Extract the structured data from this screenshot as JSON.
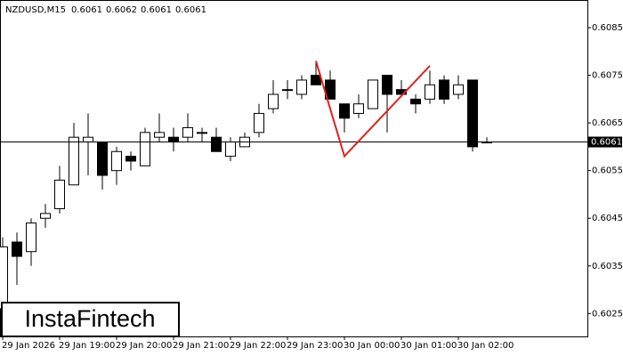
{
  "chart_data": {
    "type": "candlestick",
    "title": "NZDUSD,M15",
    "categories": [
      "29 Jan 2026",
      null,
      null,
      null,
      "29 Jan 19:00",
      null,
      null,
      null,
      "29 Jan 20:00",
      null,
      null,
      null,
      "29 Jan 21:00",
      null,
      null,
      null,
      "29 Jan 22:00",
      null,
      null,
      null,
      "29 Jan 23:00",
      null,
      null,
      null,
      "30 Jan 00:00",
      null,
      null,
      null,
      "30 Jan 01:00",
      null,
      null,
      null,
      "30 Jan 02:00",
      null,
      null
    ],
    "open": [
      0.6026,
      0.604,
      0.6038,
      0.6045,
      0.6047,
      0.6052,
      0.6061,
      0.6061,
      0.6055,
      0.6058,
      0.6056,
      0.6062,
      0.6062,
      0.6062,
      0.6063,
      0.6062,
      0.6058,
      0.606,
      0.6063,
      0.6068,
      0.6072,
      0.6071,
      0.6075,
      0.6074,
      0.6069,
      0.6067,
      0.6068,
      0.6075,
      0.6072,
      0.607,
      0.607,
      0.6074,
      0.6071,
      0.6074,
      0.6061
    ],
    "high": [
      0.6041,
      0.6042,
      0.6045,
      0.6048,
      0.6056,
      0.6065,
      0.6067,
      0.6061,
      0.606,
      0.6059,
      0.6064,
      0.6067,
      0.6064,
      0.6067,
      0.6064,
      0.6064,
      0.6062,
      0.6063,
      0.6069,
      0.6074,
      0.6074,
      0.6075,
      0.6078,
      0.6076,
      0.6069,
      0.6071,
      0.6074,
      0.6075,
      0.6074,
      0.6071,
      0.6076,
      0.6075,
      0.6075,
      0.6074,
      0.6062
    ],
    "low": [
      0.6022,
      0.6031,
      0.6035,
      0.6043,
      0.6046,
      0.6052,
      0.6054,
      0.6051,
      0.6052,
      0.6055,
      0.6056,
      0.6061,
      0.6059,
      0.6061,
      0.6061,
      0.6059,
      0.6057,
      0.606,
      0.6062,
      0.6067,
      0.607,
      0.607,
      0.6073,
      0.607,
      0.6063,
      0.6066,
      0.6068,
      0.6063,
      0.6071,
      0.6067,
      0.6069,
      0.6069,
      0.607,
      0.6059,
      0.6061
    ],
    "close": [
      0.6039,
      0.6037,
      0.6044,
      0.6046,
      0.6053,
      0.6062,
      0.6062,
      0.6054,
      0.6059,
      0.6057,
      0.6063,
      0.6063,
      0.6061,
      0.6064,
      0.6063,
      0.6059,
      0.6061,
      0.6062,
      0.6067,
      0.6071,
      0.6072,
      0.6074,
      0.6073,
      0.607,
      0.6066,
      0.6069,
      0.6074,
      0.6071,
      0.6071,
      0.6069,
      0.6073,
      0.607,
      0.6073,
      0.606,
      0.6061
    ],
    "ylim": [
      0.60202,
      0.60908
    ],
    "yticks": [
      0.6025,
      0.6035,
      0.6045,
      0.6055,
      0.6065,
      0.6075,
      0.6085
    ],
    "current_price": 0.6061,
    "pattern": {
      "color": "#e02020",
      "index": [
        22,
        24,
        30
      ],
      "values": [
        0.6078,
        0.6058,
        0.6077
      ]
    },
    "logo": "InstaFintech"
  }
}
